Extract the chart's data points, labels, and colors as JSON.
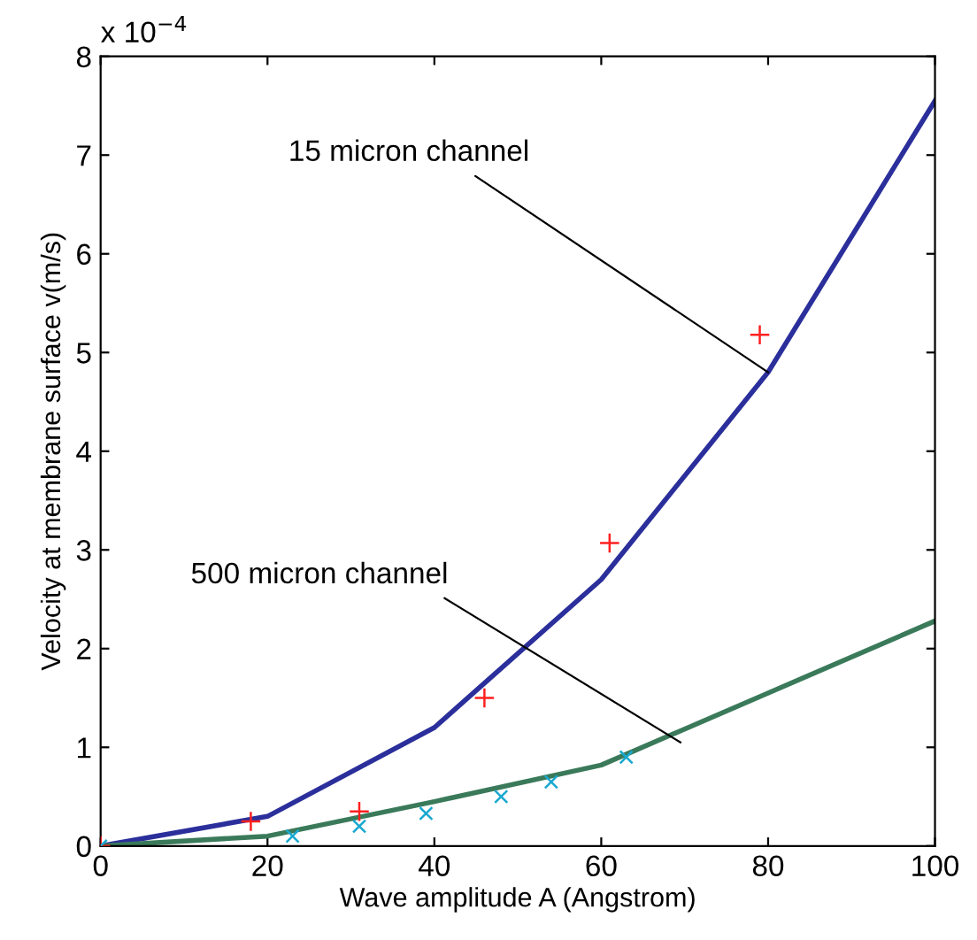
{
  "chart_data": {
    "type": "line",
    "xlabel": "Wave amplitude A (Angstrom)",
    "ylabel": "Velocity at membrane surface v(m/s)",
    "xlim": [
      0,
      100
    ],
    "ylim": [
      0,
      8
    ],
    "xticks": [
      0,
      20,
      40,
      60,
      80,
      100
    ],
    "yticks": [
      0,
      1,
      2,
      3,
      4,
      5,
      6,
      7,
      8
    ],
    "grid": false,
    "legend": false,
    "series": [
      {
        "color": "#2b2f9b",
        "x": [
          0,
          20,
          40,
          60,
          80,
          100
        ],
        "values": [
          0,
          0.3,
          1.2,
          2.7,
          4.8,
          7.55
        ]
      },
      {
        "color": "#3a7a5a",
        "x": [
          0,
          20,
          40,
          60,
          80,
          100
        ],
        "values": [
          0,
          0.1,
          0.45,
          0.82,
          1.55,
          2.28
        ]
      },
      {
        "type": "scatter",
        "marker": "cross",
        "color": "#ff2020",
        "x": [
          0,
          18,
          31,
          46,
          61,
          79
        ],
        "values": [
          0,
          0.25,
          0.35,
          1.5,
          3.07,
          5.18
        ]
      },
      {
        "type": "scatter",
        "marker": "x",
        "color": "#18a8d0",
        "x": [
          0,
          23,
          31,
          39,
          48,
          54,
          63
        ],
        "values": [
          0,
          0.1,
          0.2,
          0.33,
          0.5,
          0.65,
          0.9
        ]
      }
    ],
    "annotations": [
      "x 10$^{−4}$",
      {
        "text": "15 micron channel",
        "x": 80,
        "y": 4.8
      },
      {
        "text": "500 micron channel",
        "x": 69.5,
        "y": 1.05
      }
    ]
  }
}
